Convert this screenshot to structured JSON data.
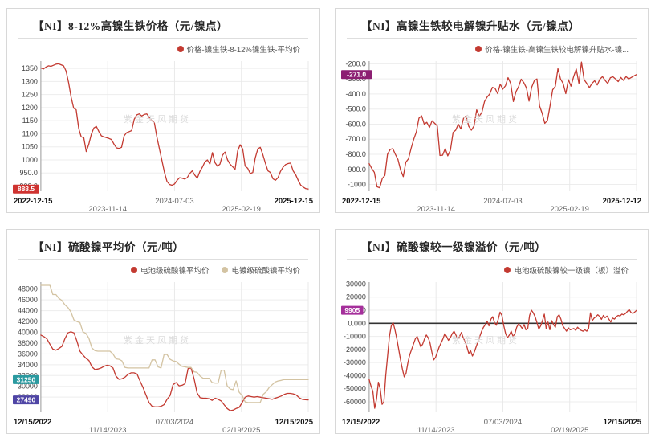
{
  "watermark": "紫金天风期货",
  "chart_data": [
    {
      "type": "line",
      "title": "【NI】8-12%高镍生铁价格（元/镍点）",
      "legend_position": "top-right",
      "grid": true,
      "zero_line": false,
      "x_labels": [
        "2022-12-15",
        "2023-11-14",
        "2024-07-03",
        "2025-02-19",
        "2025-12-15"
      ],
      "ylim": [
        880,
        1378
      ],
      "y_ticks": {
        "values": [
          1350,
          1300,
          1250,
          1200,
          1150,
          1100,
          1050,
          1000,
          950,
          900
        ],
        "labels": [
          "1350",
          "1300",
          "1250",
          "1200",
          "1150",
          "1100",
          "1050",
          "1000",
          "950.0",
          "900.0"
        ]
      },
      "badges": [
        {
          "text": "888.5",
          "value": 888.5,
          "color": "#cf3330"
        }
      ],
      "series": [
        {
          "name": "价格-镍生铁-8-12%镍生铁-平均价",
          "color": "#c33a31",
          "values": [
            1352,
            1348,
            1355,
            1360,
            1358,
            1362,
            1366,
            1368,
            1364,
            1360,
            1340,
            1295,
            1240,
            1198,
            1192,
            1120,
            1088,
            1085,
            1032,
            1060,
            1098,
            1122,
            1128,
            1108,
            1092,
            1088,
            1085,
            1082,
            1078,
            1060,
            1046,
            1044,
            1048,
            1092,
            1104,
            1108,
            1112,
            1155,
            1172,
            1176,
            1168,
            1174,
            1176,
            1162,
            1150,
            1142,
            1088,
            1042,
            998,
            952,
            918,
            906,
            903,
            908,
            922,
            932,
            930,
            927,
            932,
            948,
            958,
            942,
            930,
            955,
            972,
            992,
            1000,
            984,
            1028,
            990,
            976,
            984,
            1018,
            1030,
            1000,
            984,
            974,
            964,
            1034,
            1058,
            1042,
            976,
            968,
            948,
            952,
            1008,
            1042,
            1048,
            1020,
            988,
            958,
            952,
            928,
            922,
            932,
            956,
            972,
            982,
            986,
            988,
            958,
            944,
            922,
            904,
            896,
            890,
            888.5
          ]
        }
      ]
    },
    {
      "type": "line",
      "title": "【NI】高镍生铁较电解镍升贴水（元/镍点）",
      "legend_position": "top-right",
      "grid": true,
      "zero_line": false,
      "x_labels": [
        "2022-12-15",
        "2023-11-14",
        "2024-07-03",
        "2025-02-19",
        "2025-12-12"
      ],
      "ylim": [
        -1045,
        -182
      ],
      "y_ticks": {
        "values": [
          -200,
          -300,
          -400,
          -500,
          -600,
          -700,
          -800,
          -900,
          -1000
        ],
        "labels": [
          "-200.0",
          "-300.0",
          "-400.0",
          "-500.0",
          "-600.0",
          "-700.0",
          "-800.0",
          "-900.0",
          "-1000"
        ]
      },
      "badges": [
        {
          "text": "-271.0",
          "value": -271,
          "color": "#8c1f72"
        }
      ],
      "series": [
        {
          "name": "价格-镍生铁-高镍生铁较电解镍升贴水-镍...",
          "color": "#c33a31",
          "values": [
            -862,
            -895,
            -920,
            -1015,
            -1022,
            -960,
            -940,
            -800,
            -768,
            -762,
            -800,
            -835,
            -905,
            -948,
            -852,
            -830,
            -760,
            -700,
            -652,
            -560,
            -545,
            -600,
            -588,
            -622,
            -578,
            -595,
            -612,
            -808,
            -806,
            -762,
            -810,
            -772,
            -655,
            -640,
            -600,
            -632,
            -560,
            -545,
            -615,
            -640,
            -612,
            -505,
            -548,
            -522,
            -450,
            -420,
            -400,
            -356,
            -362,
            -398,
            -335,
            -368,
            -345,
            -292,
            -330,
            -450,
            -385,
            -352,
            -302,
            -325,
            -360,
            -448,
            -355,
            -312,
            -300,
            -478,
            -528,
            -595,
            -575,
            -480,
            -372,
            -350,
            -232,
            -300,
            -330,
            -398,
            -305,
            -348,
            -285,
            -235,
            -330,
            -188,
            -305,
            -330,
            -358,
            -330,
            -312,
            -340,
            -302,
            -285,
            -310,
            -330,
            -292,
            -286,
            -300,
            -318,
            -290,
            -310,
            -285,
            -300,
            -290,
            -280,
            -271
          ]
        }
      ]
    },
    {
      "type": "line",
      "title": "【NI】硫酸镍平均价（元/吨）",
      "legend_position": "top-right",
      "grid": true,
      "zero_line": false,
      "x_labels": [
        "12/15/2022",
        "11/14/2023",
        "07/03/2024",
        "02/19/2025",
        "12/15/2025"
      ],
      "ylim": [
        25200,
        49300
      ],
      "y_ticks": {
        "values": [
          48000,
          46000,
          44000,
          42000,
          40000,
          38000,
          36000,
          34000,
          32000,
          30000,
          28000
        ],
        "labels": [
          "48000",
          "46000",
          "44000",
          "42000",
          "40000",
          "38000",
          "36000",
          "34000",
          "32000",
          "30000",
          "28000"
        ]
      },
      "badges": [
        {
          "text": "31250",
          "value": 31250,
          "color": "#2b9aa0"
        },
        {
          "text": "27490",
          "value": 27490,
          "color": "#4f45a5"
        }
      ],
      "series": [
        {
          "name": "电池级硫酸镍平均价",
          "color": "#c33a31",
          "values": [
            39500,
            39200,
            38800,
            37800,
            36900,
            36700,
            37000,
            37400,
            38800,
            39900,
            40100,
            39900,
            38400,
            36500,
            35800,
            35200,
            34800,
            33600,
            33100,
            33200,
            33400,
            33700,
            33900,
            33800,
            33400,
            31900,
            31300,
            31400,
            31700,
            32200,
            32500,
            32500,
            32300,
            31000,
            29800,
            28400,
            27000,
            26300,
            26200,
            26200,
            26300,
            26600,
            27600,
            28300,
            30300,
            30700,
            30100,
            30200,
            30500,
            33300,
            33400,
            31400,
            28800,
            27900,
            27800,
            27800,
            27700,
            27400,
            27800,
            27600,
            27300,
            26600,
            25900,
            25500,
            25600,
            25900,
            26100,
            27000,
            28000,
            28200,
            28100,
            28000,
            28100,
            28000,
            27900,
            27800,
            27700,
            27600,
            27800,
            28000,
            28200,
            28500,
            28700,
            28700,
            28600,
            28400,
            27900,
            27600,
            27520,
            27490
          ]
        },
        {
          "name": "电镀级硫酸镍平均价",
          "color": "#d3c3a2",
          "values": [
            48700,
            48700,
            48700,
            48700,
            47000,
            47000,
            46300,
            45900,
            45100,
            44600,
            43800,
            42300,
            42000,
            41800,
            40100,
            39800,
            38900,
            37100,
            36600,
            36500,
            36500,
            36500,
            36500,
            36500,
            36000,
            35100,
            35000,
            34700,
            33500,
            33400,
            33400,
            33400,
            33400,
            33400,
            33400,
            33400,
            33400,
            34900,
            34900,
            33600,
            33400,
            35900,
            35900,
            35000,
            34700,
            34600,
            34100,
            33700,
            33600,
            33500,
            33500,
            32700,
            32600,
            31900,
            31500,
            31500,
            31500,
            30700,
            30600,
            30600,
            33000,
            33000,
            30100,
            29500,
            29400,
            31000,
            28900,
            28300,
            27100,
            27000,
            27000,
            27000,
            27000,
            27000,
            28500,
            29000,
            29800,
            30300,
            30800,
            31000,
            31100,
            31250,
            31250,
            31250,
            31250,
            31250,
            31250,
            31250,
            31250,
            31250
          ]
        }
      ]
    },
    {
      "type": "line",
      "title": "【NI】硫酸镍较一级镍溢价（元/吨）",
      "legend_position": "top-right",
      "grid": true,
      "zero_line": true,
      "x_labels": [
        "12/15/2022",
        "11/14/2023",
        "07/03/2024",
        "02/19/2025",
        "12/15/2025"
      ],
      "ylim": [
        -68000,
        31500
      ],
      "y_ticks": {
        "values": [
          30000,
          20000,
          10000,
          0,
          -10000,
          -20000,
          -30000,
          -40000,
          -50000,
          -60000
        ],
        "labels": [
          "30000",
          "20000",
          "10000",
          "0.000",
          "-10000",
          "-20000",
          "-30000",
          "-40000",
          "-50000",
          "-60000"
        ]
      },
      "badges": [
        {
          "text": "9905",
          "value": 9905,
          "color": "#a52f9b"
        }
      ],
      "series": [
        {
          "name": "电池级硫酸镍较一级镍（板）溢价",
          "color": "#c33a31",
          "values": [
            -43000,
            -48000,
            -52000,
            -65000,
            -58000,
            -45000,
            -50000,
            -62000,
            -60000,
            -40000,
            -25000,
            -10000,
            -2000,
            500,
            -5000,
            -12000,
            -20000,
            -28000,
            -35000,
            -41000,
            -38000,
            -30000,
            -24000,
            -20000,
            -16000,
            -12000,
            -10000,
            -14000,
            -18000,
            -16000,
            -12000,
            -9000,
            -11000,
            -15000,
            -22000,
            -28000,
            -26000,
            -22000,
            -18000,
            -15000,
            -12000,
            -8000,
            -10000,
            -13000,
            -11000,
            -8000,
            -6000,
            -9000,
            -12000,
            -10000,
            -7000,
            -11000,
            -14000,
            -18000,
            -23000,
            -21000,
            -25000,
            -22000,
            -18000,
            -14000,
            -10000,
            -6000,
            -3000,
            -1000,
            1500,
            -2000,
            3000,
            5000,
            500,
            -1500,
            3000,
            8500,
            6000,
            -2000,
            -8000,
            -11000,
            -9000,
            -6000,
            -10000,
            -8000,
            -3000,
            -500,
            -2000,
            -4000,
            -1000,
            -5000,
            -4000,
            6000,
            10000,
            8000,
            5000,
            500,
            -4500,
            -2000,
            2000,
            7000,
            -4000,
            1000,
            -5000,
            2000,
            -1000,
            -3000,
            5000,
            6500,
            3000,
            -2000,
            -4000,
            -6000,
            -3500,
            -5000,
            -4500,
            -4000,
            -5500,
            -3000,
            -4500,
            -5500,
            -6000,
            -5000,
            -6000,
            -4000,
            8000,
            2000,
            4000,
            5000,
            6500,
            5200,
            3000,
            6000,
            4200,
            5500,
            3200,
            1000,
            4000,
            3200,
            5000,
            6000,
            5500,
            7000,
            6500,
            7500,
            9000,
            10500,
            8200,
            7500,
            8600,
            9905
          ]
        }
      ]
    }
  ]
}
